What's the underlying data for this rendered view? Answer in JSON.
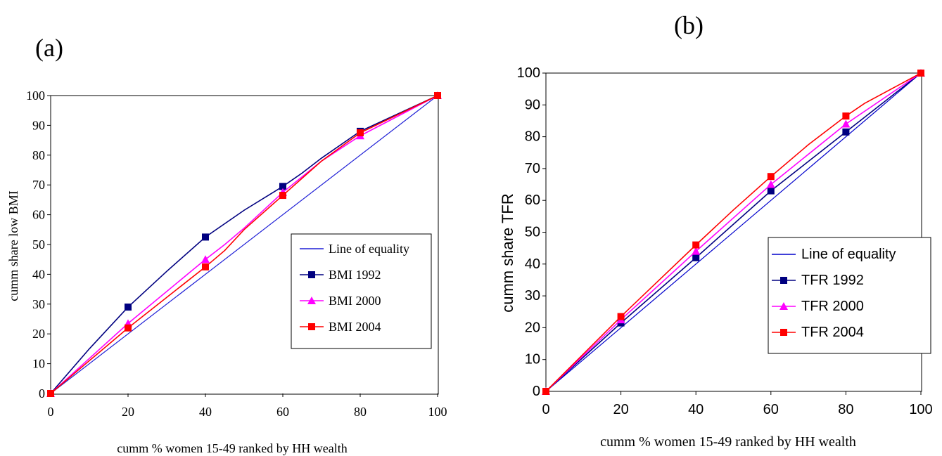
{
  "chart_data": [
    {
      "type": "line",
      "panel_label": "(a)",
      "xlabel": "cumm % women 15-49 ranked by HH wealth",
      "ylabel": "cumm share low BMI",
      "xlim": [
        0,
        100
      ],
      "ylim": [
        0,
        100
      ],
      "x_ticks": [
        0,
        20,
        40,
        60,
        80,
        100
      ],
      "y_ticks": [
        0,
        10,
        20,
        30,
        40,
        50,
        60,
        70,
        80,
        90,
        100
      ],
      "grid": false,
      "legend_position": "right",
      "series": [
        {
          "name": "Line of equality",
          "color": "#1f1fd6",
          "marker": "none",
          "x": [
            0,
            100
          ],
          "y": [
            0,
            100
          ]
        },
        {
          "name": "BMI 1992",
          "color": "#000080",
          "marker": "square",
          "x": [
            0,
            10,
            20,
            30,
            40,
            50,
            60,
            65,
            70,
            80,
            100
          ],
          "y": [
            0,
            15,
            29,
            41,
            52.5,
            61.5,
            69.5,
            74,
            79,
            88,
            100
          ],
          "marker_x": [
            0,
            20,
            40,
            60,
            80,
            100
          ]
        },
        {
          "name": "BMI 2000",
          "color": "#ff00ff",
          "marker": "triangle",
          "x": [
            0,
            20,
            40,
            45,
            50,
            60,
            70,
            80,
            100
          ],
          "y": [
            0,
            23.5,
            45,
            50,
            55.5,
            67.5,
            78,
            86.5,
            100
          ],
          "marker_x": [
            0,
            20,
            40,
            60,
            80,
            100
          ]
        },
        {
          "name": "BMI 2004",
          "color": "#ff0000",
          "marker": "square",
          "x": [
            0,
            20,
            40,
            45,
            50,
            60,
            70,
            80,
            100
          ],
          "y": [
            0,
            22,
            42.5,
            48,
            55,
            66.5,
            78,
            87.5,
            100
          ],
          "marker_x": [
            0,
            20,
            40,
            60,
            80,
            100
          ]
        }
      ]
    },
    {
      "type": "line",
      "panel_label": "(b)",
      "xlabel": "cumm % women 15-49 ranked by HH wealth",
      "ylabel": "cumm share TFR",
      "xlim": [
        0,
        100
      ],
      "ylim": [
        0,
        100
      ],
      "x_ticks": [
        0,
        20,
        40,
        60,
        80,
        100
      ],
      "y_ticks": [
        0,
        10,
        20,
        30,
        40,
        50,
        60,
        70,
        80,
        90,
        100
      ],
      "grid": false,
      "legend_position": "right",
      "series": [
        {
          "name": "Line of equality",
          "color": "#0000cc",
          "marker": "none",
          "x": [
            0,
            100
          ],
          "y": [
            0,
            100
          ]
        },
        {
          "name": "TFR 1992",
          "color": "#000080",
          "marker": "square",
          "x": [
            0,
            20,
            40,
            60,
            80,
            100
          ],
          "y": [
            0,
            21.5,
            42,
            63,
            81.5,
            100
          ],
          "marker_x": [
            0,
            20,
            40,
            60,
            80,
            100
          ]
        },
        {
          "name": "TFR 2000",
          "color": "#ff00ff",
          "marker": "triangle",
          "x": [
            0,
            20,
            40,
            60,
            80,
            100
          ],
          "y": [
            0,
            22.5,
            44,
            65,
            84,
            100
          ],
          "marker_x": [
            0,
            20,
            40,
            60,
            80,
            100
          ]
        },
        {
          "name": "TFR 2004",
          "color": "#ff0000",
          "marker": "square",
          "x": [
            0,
            20,
            40,
            50,
            60,
            70,
            80,
            85,
            100
          ],
          "y": [
            0,
            23.5,
            46,
            57,
            67.5,
            77.5,
            86.5,
            90.5,
            100
          ],
          "marker_x": [
            0,
            20,
            40,
            60,
            80,
            100
          ]
        }
      ]
    }
  ]
}
